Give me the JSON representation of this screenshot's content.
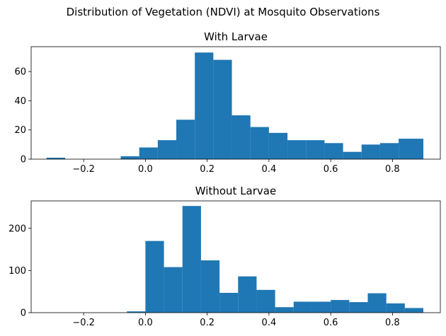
{
  "chart_data": {
    "type": "bar",
    "suptitle": "Distribution of Vegetation (NDVI) at Mosquito Observations",
    "bar_color": "#1f77b4",
    "xlim": [
      -0.37,
      0.955
    ],
    "xticks": [
      -0.2,
      0.0,
      0.2,
      0.4,
      0.6,
      0.8
    ],
    "xtick_labels": [
      "−0.2",
      "0.0",
      "0.2",
      "0.4",
      "0.6",
      "0.8"
    ],
    "panels": [
      {
        "title": "With Larvae",
        "ylim": [
          0,
          77
        ],
        "yticks": [
          0,
          20,
          40,
          60
        ],
        "ytick_labels": [
          "0",
          "20",
          "40",
          "60"
        ],
        "bins": [
          {
            "x0": -0.32,
            "x1": -0.26,
            "count": 1
          },
          {
            "x0": -0.08,
            "x1": -0.02,
            "count": 2
          },
          {
            "x0": -0.02,
            "x1": 0.04,
            "count": 8
          },
          {
            "x0": 0.04,
            "x1": 0.1,
            "count": 13
          },
          {
            "x0": 0.1,
            "x1": 0.16,
            "count": 27
          },
          {
            "x0": 0.16,
            "x1": 0.22,
            "count": 73
          },
          {
            "x0": 0.22,
            "x1": 0.28,
            "count": 68
          },
          {
            "x0": 0.28,
            "x1": 0.34,
            "count": 30
          },
          {
            "x0": 0.34,
            "x1": 0.4,
            "count": 22
          },
          {
            "x0": 0.4,
            "x1": 0.46,
            "count": 18
          },
          {
            "x0": 0.46,
            "x1": 0.52,
            "count": 13
          },
          {
            "x0": 0.52,
            "x1": 0.58,
            "count": 13
          },
          {
            "x0": 0.58,
            "x1": 0.64,
            "count": 11
          },
          {
            "x0": 0.64,
            "x1": 0.7,
            "count": 5
          },
          {
            "x0": 0.7,
            "x1": 0.76,
            "count": 10
          },
          {
            "x0": 0.76,
            "x1": 0.82,
            "count": 11
          },
          {
            "x0": 0.82,
            "x1": 0.9,
            "count": 14
          }
        ]
      },
      {
        "title": "Without Larvae",
        "ylim": [
          0,
          265
        ],
        "yticks": [
          0,
          100,
          200
        ],
        "ytick_labels": [
          "0",
          "100",
          "200"
        ],
        "bins": [
          {
            "x0": -0.06,
            "x1": 0.0,
            "count": 3
          },
          {
            "x0": 0.0,
            "x1": 0.06,
            "count": 170
          },
          {
            "x0": 0.06,
            "x1": 0.12,
            "count": 108
          },
          {
            "x0": 0.12,
            "x1": 0.18,
            "count": 253
          },
          {
            "x0": 0.18,
            "x1": 0.24,
            "count": 124
          },
          {
            "x0": 0.24,
            "x1": 0.3,
            "count": 47
          },
          {
            "x0": 0.3,
            "x1": 0.36,
            "count": 86
          },
          {
            "x0": 0.36,
            "x1": 0.42,
            "count": 54
          },
          {
            "x0": 0.42,
            "x1": 0.48,
            "count": 13
          },
          {
            "x0": 0.48,
            "x1": 0.54,
            "count": 26
          },
          {
            "x0": 0.54,
            "x1": 0.6,
            "count": 26
          },
          {
            "x0": 0.6,
            "x1": 0.66,
            "count": 30
          },
          {
            "x0": 0.66,
            "x1": 0.72,
            "count": 25
          },
          {
            "x0": 0.72,
            "x1": 0.78,
            "count": 46
          },
          {
            "x0": 0.78,
            "x1": 0.84,
            "count": 22
          },
          {
            "x0": 0.84,
            "x1": 0.9,
            "count": 11
          }
        ]
      }
    ]
  }
}
